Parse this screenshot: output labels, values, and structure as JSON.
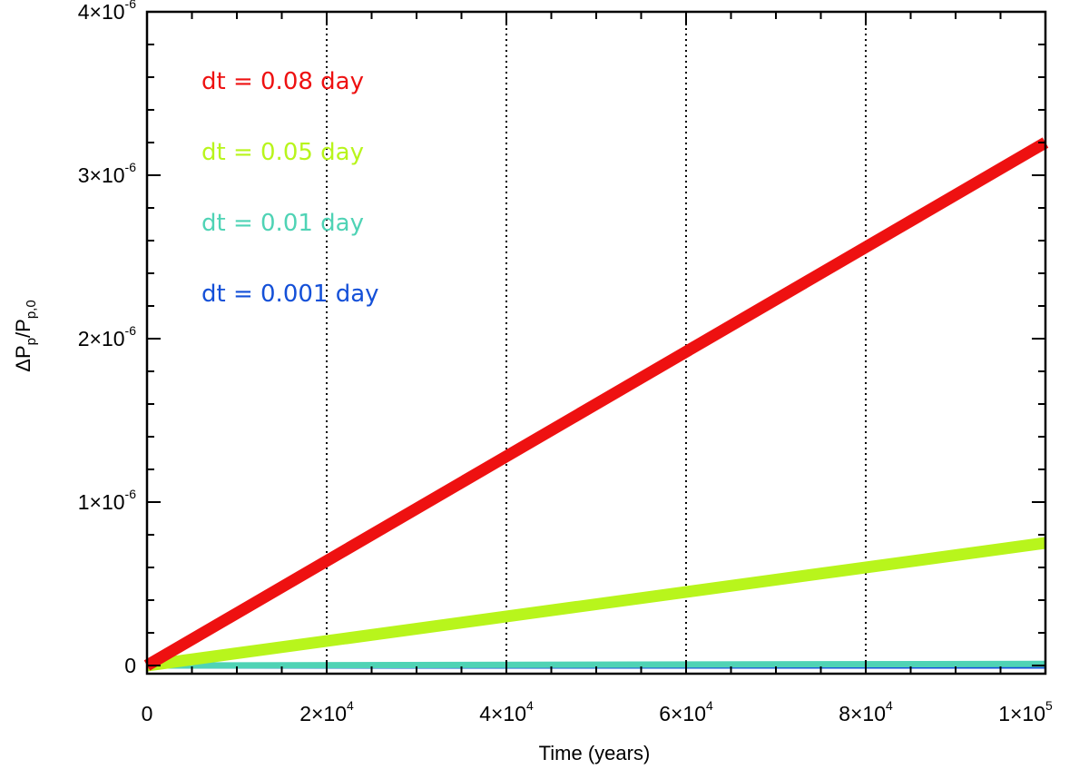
{
  "chart_data": {
    "type": "line",
    "title": "",
    "xlabel": "Time (years)",
    "ylabel": {
      "base": "ΔP",
      "sub1": "p",
      "mid": "/P",
      "sub2": "p,0"
    },
    "xlim": [
      0,
      100000
    ],
    "ylim": [
      -5e-08,
      4e-06
    ],
    "x_ticks": [
      {
        "value": 0,
        "mant": "0",
        "exp": ""
      },
      {
        "value": 20000,
        "mant": "2×10",
        "exp": "4"
      },
      {
        "value": 40000,
        "mant": "4×10",
        "exp": "4"
      },
      {
        "value": 60000,
        "mant": "6×10",
        "exp": "4"
      },
      {
        "value": 80000,
        "mant": "8×10",
        "exp": "4"
      },
      {
        "value": 100000,
        "mant": "1×10",
        "exp": "5"
      }
    ],
    "y_ticks": [
      {
        "value": 0,
        "mant": "0",
        "exp": ""
      },
      {
        "value": 1e-06,
        "mant": "1×10",
        "exp": "-6"
      },
      {
        "value": 2e-06,
        "mant": "2×10",
        "exp": "-6"
      },
      {
        "value": 3e-06,
        "mant": "3×10",
        "exp": "-6"
      },
      {
        "value": 4e-06,
        "mant": "4×10",
        "exp": "-6"
      }
    ],
    "vertical_dotted_lines": [
      20000,
      40000,
      60000,
      80000
    ],
    "legend_position": "top-left",
    "series": [
      {
        "name": "dt = 0.08 day",
        "color": "#ee1111",
        "x": [
          0,
          100000
        ],
        "y": [
          0,
          3.2e-06
        ]
      },
      {
        "name": "dt = 0.05 day",
        "color": "#b8f51c",
        "x": [
          0,
          100000
        ],
        "y": [
          0,
          7.5e-07
        ]
      },
      {
        "name": "dt = 0.01 day",
        "color": "#4fd3b5",
        "x": [
          0,
          100000
        ],
        "y": [
          0,
          1e-08
        ]
      },
      {
        "name": "dt = 0.001 day",
        "color": "#1450d8",
        "x": [
          0,
          100000
        ],
        "y": [
          0,
          0
        ]
      }
    ]
  }
}
